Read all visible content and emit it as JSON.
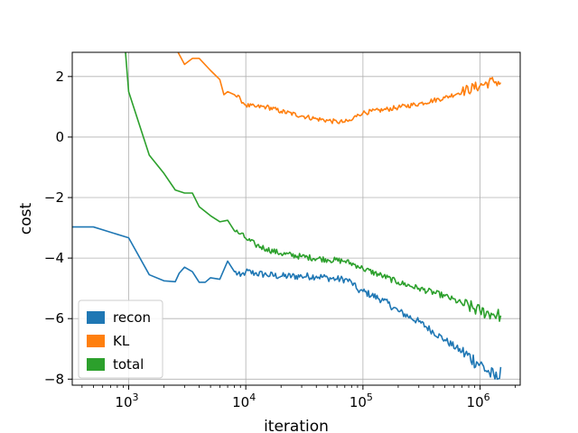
{
  "chart_data": {
    "type": "line",
    "xlabel": "iteration",
    "ylabel": "cost",
    "x_scale": "log",
    "xlim": [
      330,
      2200000
    ],
    "ylim": [
      -8.2,
      2.8
    ],
    "x_ticks": [
      {
        "value": 1000,
        "base": "10",
        "exp": "3"
      },
      {
        "value": 10000,
        "base": "10",
        "exp": "4"
      },
      {
        "value": 100000,
        "base": "10",
        "exp": "5"
      },
      {
        "value": 1000000,
        "base": "10",
        "exp": "6"
      }
    ],
    "y_ticks": [
      {
        "value": 2,
        "label": "2"
      },
      {
        "value": 0,
        "label": "0"
      },
      {
        "value": -2,
        "label": "−2"
      },
      {
        "value": -4,
        "label": "−4"
      },
      {
        "value": -6,
        "label": "−6"
      },
      {
        "value": -8,
        "label": "−8"
      }
    ],
    "grid": true,
    "legend_position": "lower-left",
    "series": [
      {
        "name": "recon",
        "color": "#1f77b4",
        "points": [
          [
            330,
            -2.97
          ],
          [
            500,
            -2.97
          ],
          [
            1000,
            -3.33
          ],
          [
            1500,
            -4.55
          ],
          [
            2000,
            -4.75
          ],
          [
            2500,
            -4.78
          ],
          [
            2700,
            -4.5
          ],
          [
            3000,
            -4.3
          ],
          [
            3500,
            -4.45
          ],
          [
            4000,
            -4.8
          ],
          [
            4500,
            -4.8
          ],
          [
            5000,
            -4.65
          ],
          [
            6000,
            -4.7
          ],
          [
            7000,
            -4.1
          ],
          [
            8000,
            -4.45
          ],
          [
            9000,
            -4.6
          ],
          [
            10000,
            -4.45
          ],
          [
            12000,
            -4.5
          ],
          [
            15000,
            -4.55
          ],
          [
            20000,
            -4.6
          ],
          [
            30000,
            -4.6
          ],
          [
            40000,
            -4.6
          ],
          [
            50000,
            -4.65
          ],
          [
            60000,
            -4.7
          ],
          [
            70000,
            -4.7
          ],
          [
            80000,
            -4.8
          ],
          [
            90000,
            -5.05
          ],
          [
            100000,
            -5.1
          ],
          [
            150000,
            -5.4
          ],
          [
            200000,
            -5.75
          ],
          [
            300000,
            -6.1
          ],
          [
            500000,
            -6.7
          ],
          [
            700000,
            -7.1
          ],
          [
            1000000,
            -7.5
          ],
          [
            1200000,
            -7.8
          ],
          [
            1400000,
            -8.0
          ],
          [
            1500000,
            -7.6
          ]
        ],
        "noise": 0.12
      },
      {
        "name": "KL",
        "color": "#ff7f0e",
        "points": [
          [
            2600,
            2.85
          ],
          [
            3000,
            2.4
          ],
          [
            3500,
            2.6
          ],
          [
            4000,
            2.6
          ],
          [
            5000,
            2.2
          ],
          [
            6000,
            1.9
          ],
          [
            6500,
            1.4
          ],
          [
            7000,
            1.5
          ],
          [
            8000,
            1.4
          ],
          [
            9000,
            1.25
          ],
          [
            10000,
            1.05
          ],
          [
            12000,
            1.0
          ],
          [
            15000,
            1.0
          ],
          [
            20000,
            0.85
          ],
          [
            30000,
            0.7
          ],
          [
            40000,
            0.6
          ],
          [
            50000,
            0.55
          ],
          [
            60000,
            0.5
          ],
          [
            70000,
            0.5
          ],
          [
            80000,
            0.55
          ],
          [
            90000,
            0.75
          ],
          [
            100000,
            0.8
          ],
          [
            150000,
            0.9
          ],
          [
            200000,
            0.98
          ],
          [
            300000,
            1.1
          ],
          [
            500000,
            1.3
          ],
          [
            700000,
            1.5
          ],
          [
            1000000,
            1.7
          ],
          [
            1300000,
            1.85
          ],
          [
            1500000,
            1.8
          ]
        ],
        "noise": 0.08
      },
      {
        "name": "total",
        "color": "#2ca02c",
        "points": [
          [
            940,
            2.8
          ],
          [
            1000,
            1.5
          ],
          [
            1500,
            -0.6
          ],
          [
            2000,
            -1.2
          ],
          [
            2500,
            -1.75
          ],
          [
            3000,
            -1.85
          ],
          [
            3500,
            -1.85
          ],
          [
            4000,
            -2.3
          ],
          [
            5000,
            -2.6
          ],
          [
            6000,
            -2.8
          ],
          [
            7000,
            -2.75
          ],
          [
            8000,
            -3.1
          ],
          [
            9000,
            -3.2
          ],
          [
            10000,
            -3.35
          ],
          [
            12000,
            -3.55
          ],
          [
            15000,
            -3.7
          ],
          [
            20000,
            -3.85
          ],
          [
            30000,
            -3.95
          ],
          [
            50000,
            -4.05
          ],
          [
            70000,
            -4.1
          ],
          [
            90000,
            -4.25
          ],
          [
            100000,
            -4.35
          ],
          [
            150000,
            -4.6
          ],
          [
            200000,
            -4.8
          ],
          [
            300000,
            -5.0
          ],
          [
            500000,
            -5.25
          ],
          [
            700000,
            -5.5
          ],
          [
            1000000,
            -5.75
          ],
          [
            1300000,
            -5.85
          ],
          [
            1500000,
            -5.9
          ]
        ],
        "noise": 0.1
      }
    ]
  }
}
